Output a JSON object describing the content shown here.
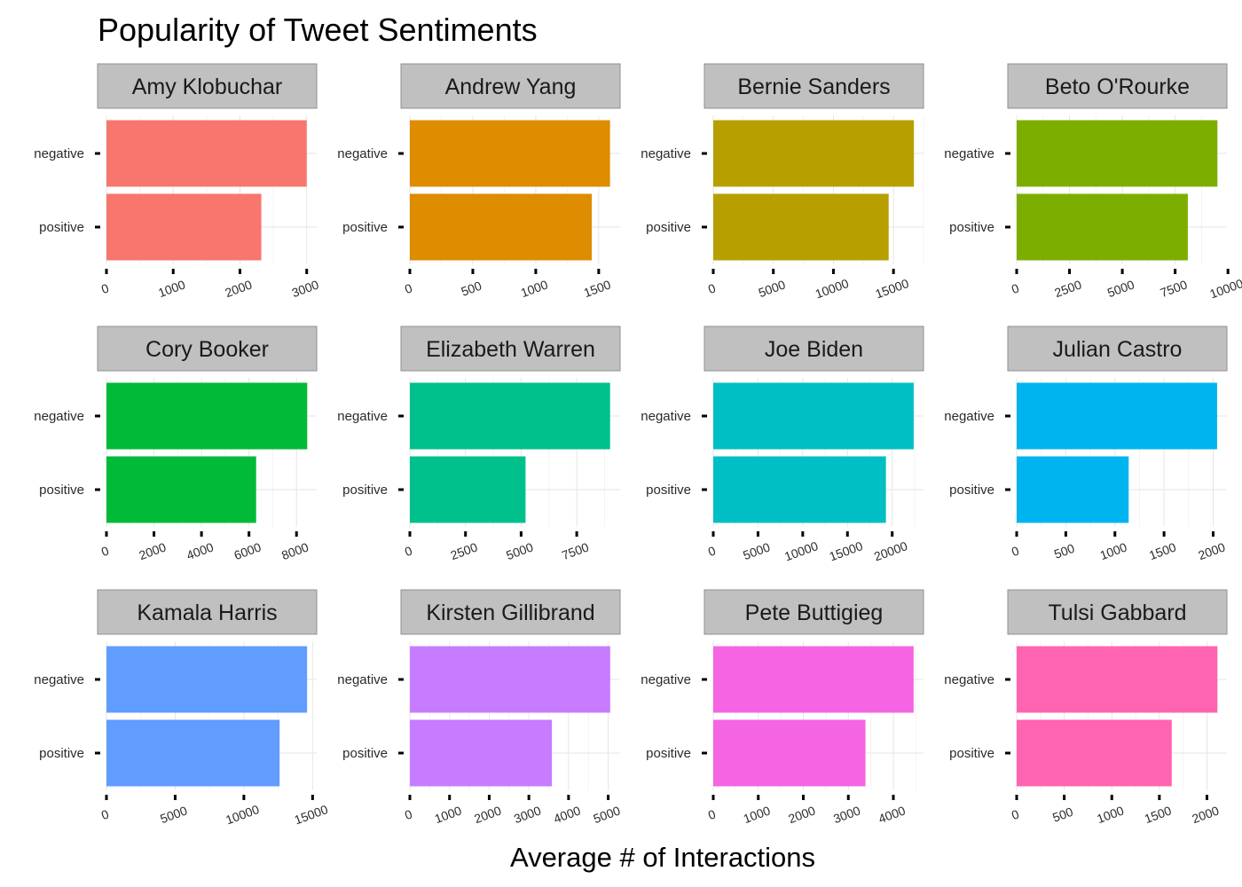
{
  "chart_data": {
    "type": "bar",
    "orientation": "horizontal",
    "title": "Popularity of Tweet Sentiments",
    "xlabel": "Average # of Interactions",
    "ylabel": "",
    "categories": [
      "negative",
      "positive"
    ],
    "grid": true,
    "legend": "none",
    "facets": [
      {
        "name": "Amy Klobuchar",
        "color": "#F8766D",
        "values": [
          3000,
          2320
        ],
        "xlim": [
          0,
          3150
        ],
        "ticks": [
          0,
          1000,
          2000,
          3000
        ]
      },
      {
        "name": "Andrew Yang",
        "color": "#DE8C00",
        "values": [
          1590,
          1445
        ],
        "xlim": [
          0,
          1670
        ],
        "ticks": [
          0,
          500,
          1000,
          1500
        ]
      },
      {
        "name": "Bernie Sanders",
        "color": "#B79F00",
        "values": [
          16700,
          14600
        ],
        "xlim": [
          0,
          17500
        ],
        "ticks": [
          0,
          5000,
          10000,
          15000
        ]
      },
      {
        "name": "Beto O'Rourke",
        "color": "#7CAE00",
        "values": [
          9500,
          8100
        ],
        "xlim": [
          0,
          9950
        ],
        "ticks": [
          0,
          2500,
          5000,
          7500,
          10000
        ]
      },
      {
        "name": "Cory Booker",
        "color": "#00BA38",
        "values": [
          8450,
          6300
        ],
        "xlim": [
          0,
          8850
        ],
        "ticks": [
          0,
          2000,
          4000,
          6000,
          8000
        ]
      },
      {
        "name": "Elizabeth Warren",
        "color": "#00C08B",
        "values": [
          9000,
          5200
        ],
        "xlim": [
          0,
          9450
        ],
        "ticks": [
          0,
          2500,
          5000,
          7500
        ]
      },
      {
        "name": "Joe Biden",
        "color": "#00BFC4",
        "values": [
          22400,
          19300
        ],
        "xlim": [
          0,
          23500
        ],
        "ticks": [
          0,
          5000,
          10000,
          15000,
          20000
        ]
      },
      {
        "name": "Julian Castro",
        "color": "#00B4F0",
        "values": [
          2040,
          1140
        ],
        "xlim": [
          0,
          2140
        ],
        "ticks": [
          0,
          500,
          1000,
          1500,
          2000
        ]
      },
      {
        "name": "Kamala Harris",
        "color": "#619CFF",
        "values": [
          14600,
          12600
        ],
        "xlim": [
          0,
          15300
        ],
        "ticks": [
          0,
          5000,
          10000,
          15000
        ]
      },
      {
        "name": "Kirsten Gillibrand",
        "color": "#C77CFF",
        "values": [
          5050,
          3580
        ],
        "xlim": [
          0,
          5300
        ],
        "ticks": [
          0,
          1000,
          2000,
          3000,
          4000,
          5000
        ]
      },
      {
        "name": "Pete Buttigieg",
        "color": "#F564E3",
        "values": [
          4450,
          3380
        ],
        "xlim": [
          0,
          4670
        ],
        "ticks": [
          0,
          1000,
          2000,
          3000,
          4000
        ]
      },
      {
        "name": "Tulsi Gabbard",
        "color": "#FF64B0",
        "values": [
          2110,
          1630
        ],
        "xlim": [
          0,
          2210
        ],
        "ticks": [
          0,
          500,
          1000,
          1500,
          2000
        ]
      }
    ]
  }
}
